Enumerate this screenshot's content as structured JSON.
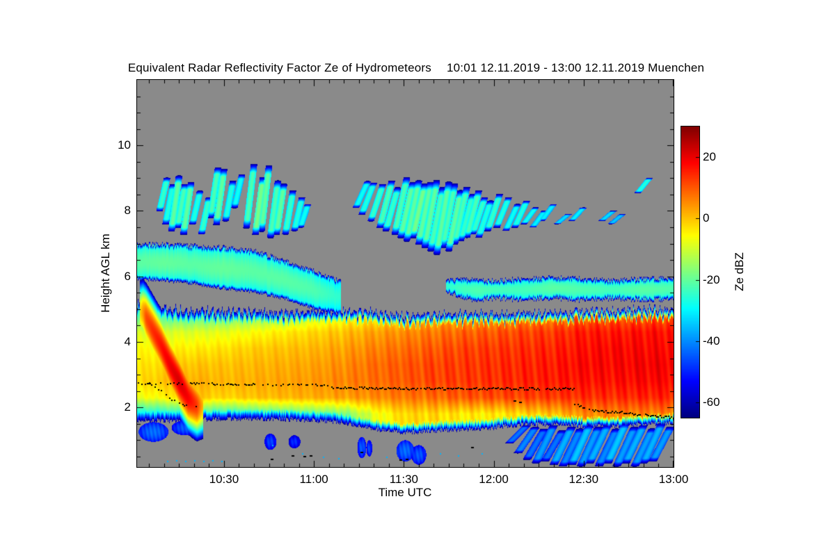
{
  "title": {
    "main": "Equivalent Radar Reflectivity Factor Ze of Hydrometeors",
    "period": "10:01 12.11.2019 - 13:00 12.11.2019 Muenchen"
  },
  "axes": {
    "x": {
      "label": "Time UTC",
      "start_minute": 1,
      "end_minute": 180,
      "major_tick_minutes": [
        30,
        60,
        90,
        120,
        150,
        180
      ],
      "tick_labels": [
        "10:30",
        "11:00",
        "11:30",
        "12:00",
        "12:30",
        "13:00"
      ],
      "minor_step_min": 5
    },
    "y": {
      "label": "Height AGL km",
      "range_km": [
        0.18,
        12.0
      ],
      "major_tick_values": [
        2,
        4,
        6,
        8,
        10
      ],
      "tick_labels": [
        "2",
        "4",
        "6",
        "8",
        "10"
      ],
      "minor_step_km": 0.5
    }
  },
  "colorbar": {
    "label": "Ze dBZ",
    "range_dbz": [
      -65,
      30
    ],
    "tick_values": [
      20,
      0,
      -20,
      -40,
      -60
    ],
    "tick_labels": [
      "20",
      "0",
      "-20",
      "-40",
      "-60"
    ],
    "colormap": "jet"
  },
  "colors": {
    "background": "#ffffff",
    "no_data_gray": "#8a8a8a",
    "frame": "#000000",
    "melting_layer_line": "#000000"
  },
  "chart_data": {
    "type": "heatmap",
    "title": "Equivalent Radar Reflectivity Factor Ze of Hydrometeors",
    "xlabel": "Time UTC",
    "ylabel": "Height AGL km",
    "value_units": "dBZ",
    "x_range_utc": [
      "10:01",
      "13:00"
    ],
    "y_range_km": [
      0.18,
      12.0
    ],
    "value_range": [
      -65,
      30
    ],
    "main_band": {
      "comment": "cols: [minutes_after_1000, bottom_km, top_km, dBZ at anchor heights]",
      "anchor_heights_km": [
        1.8,
        2.3,
        2.8,
        3.3,
        3.8,
        4.3,
        4.8
      ],
      "cols": [
        [
          0,
          1.55,
          5.2,
          -30,
          -8,
          -3,
          -4,
          -6,
          -10,
          -24
        ],
        [
          10,
          1.55,
          5.05,
          -28,
          -5,
          0,
          -2,
          -5,
          -9,
          -22
        ],
        [
          20,
          1.6,
          5.0,
          -24,
          0,
          2,
          0,
          -4,
          -9,
          -22
        ],
        [
          30,
          1.6,
          4.95,
          -26,
          -2,
          1,
          0,
          -3,
          -8,
          -20
        ],
        [
          40,
          1.6,
          4.95,
          -24,
          0,
          2,
          1,
          -1,
          -6,
          -17
        ],
        [
          50,
          1.6,
          4.9,
          -22,
          1,
          3,
          2,
          0,
          -4,
          -15
        ],
        [
          60,
          1.55,
          4.95,
          -20,
          2,
          4,
          3,
          1,
          -2,
          -11
        ],
        [
          70,
          1.5,
          4.95,
          -18,
          3,
          6,
          5,
          3,
          0,
          -7
        ],
        [
          80,
          1.3,
          4.9,
          -8,
          5,
          8,
          8,
          6,
          3,
          -5
        ],
        [
          90,
          1.2,
          4.8,
          -2,
          7,
          10,
          10,
          8,
          5,
          -2
        ],
        [
          100,
          1.25,
          4.85,
          -2,
          8,
          12,
          12,
          10,
          7,
          1
        ],
        [
          110,
          1.3,
          4.85,
          -4,
          10,
          13,
          13,
          12,
          9,
          3
        ],
        [
          120,
          1.35,
          4.85,
          -4,
          11,
          14,
          14,
          13,
          10,
          4
        ],
        [
          130,
          1.45,
          4.9,
          -2,
          12,
          15,
          15,
          14,
          12,
          5
        ],
        [
          140,
          1.45,
          4.9,
          0,
          13,
          16,
          16,
          15,
          13,
          6
        ],
        [
          150,
          1.4,
          4.95,
          5,
          14,
          17,
          18,
          17,
          16,
          9
        ],
        [
          160,
          1.4,
          4.95,
          6,
          14,
          17,
          18,
          18,
          16,
          10
        ],
        [
          170,
          1.45,
          5.0,
          6,
          15,
          18,
          19,
          18,
          17,
          10
        ],
        [
          180,
          1.5,
          5.0,
          6,
          15,
          18,
          19,
          18,
          17,
          11
        ]
      ]
    },
    "left_fall_streak": {
      "comment": "strong descending streak 10:03-10:21, core: [minute, height_km, peak_dBZ]",
      "core": [
        [
          3,
          4.9,
          10
        ],
        [
          6,
          4.4,
          14
        ],
        [
          9,
          3.9,
          17
        ],
        [
          12,
          3.3,
          20
        ],
        [
          15,
          2.8,
          22
        ],
        [
          18,
          2.3,
          19
        ],
        [
          21,
          2.05,
          13
        ]
      ]
    },
    "layers": {
      "left_midlevel": {
        "comment": "[minute, bottom_km, top_km, mid_dBZ] cloud layer 10:01-11:08",
        "cols": [
          [
            0,
            5.9,
            7.0,
            -26
          ],
          [
            10,
            5.85,
            7.0,
            -25
          ],
          [
            20,
            5.75,
            6.95,
            -26
          ],
          [
            30,
            5.6,
            6.9,
            -25
          ],
          [
            40,
            5.5,
            6.8,
            -26
          ],
          [
            50,
            5.3,
            6.5,
            -26
          ],
          [
            60,
            5.0,
            6.2,
            -27
          ],
          [
            68,
            4.85,
            5.9,
            -30
          ]
        ]
      },
      "right_midlevel": {
        "comment": "thin layer 11:45-13:00 near 5.2-6.0 km",
        "cols": [
          [
            105,
            5.5,
            5.9,
            -30
          ],
          [
            110,
            5.3,
            5.95,
            -28
          ],
          [
            115,
            5.25,
            5.9,
            -27
          ],
          [
            120,
            5.3,
            5.9,
            -28
          ],
          [
            130,
            5.25,
            5.95,
            -28
          ],
          [
            140,
            5.3,
            6.0,
            -26
          ],
          [
            150,
            5.25,
            5.95,
            -27
          ],
          [
            160,
            5.3,
            5.9,
            -28
          ],
          [
            170,
            5.25,
            5.95,
            -26
          ],
          [
            180,
            5.25,
            6.0,
            -27
          ]
        ]
      }
    },
    "cirrus_groups": [
      {
        "name": "morning-streaks",
        "tilt_min": -2.5,
        "width_min": 1.1,
        "streaks": [
          [
            11,
            9.0,
            8.0,
            -30
          ],
          [
            13,
            8.8,
            7.6,
            -32
          ],
          [
            15,
            9.05,
            7.4,
            -26
          ],
          [
            17,
            8.8,
            7.5,
            -28
          ],
          [
            19,
            8.85,
            7.3,
            -26
          ],
          [
            22,
            8.6,
            7.6,
            -32
          ],
          [
            25,
            8.4,
            7.3,
            -30
          ],
          [
            28,
            9.3,
            7.8,
            -28
          ],
          [
            30,
            9.25,
            7.6,
            -26
          ],
          [
            33,
            8.9,
            7.7,
            -32
          ],
          [
            36,
            9.1,
            8.1,
            -34
          ],
          [
            40,
            9.4,
            7.5,
            -28
          ],
          [
            43,
            9.0,
            7.3,
            -24
          ],
          [
            45,
            9.35,
            7.4,
            -26
          ],
          [
            48,
            8.9,
            7.2,
            -28
          ],
          [
            50,
            8.8,
            7.3,
            -26
          ],
          [
            53,
            8.6,
            7.3,
            -30
          ],
          [
            56,
            8.4,
            7.4,
            -32
          ],
          [
            58,
            8.2,
            7.5,
            -34
          ]
        ]
      },
      {
        "name": "midday-streaks",
        "tilt_min": -4,
        "width_min": 1.1,
        "streaks": [
          [
            78,
            8.9,
            8.1,
            -34
          ],
          [
            80,
            8.85,
            7.9,
            -32
          ],
          [
            83,
            8.8,
            7.7,
            -30
          ],
          [
            86,
            8.9,
            7.5,
            -28
          ],
          [
            88,
            8.7,
            7.4,
            -30
          ],
          [
            91,
            9.0,
            7.3,
            -28
          ],
          [
            93,
            8.85,
            7.2,
            -26
          ],
          [
            95,
            8.9,
            7.1,
            -26
          ],
          [
            97,
            8.8,
            7.2,
            -24
          ],
          [
            99,
            8.85,
            7.0,
            -26
          ],
          [
            101,
            8.9,
            6.9,
            -26
          ],
          [
            103,
            8.7,
            6.8,
            -28
          ],
          [
            105,
            8.85,
            6.7,
            -26
          ],
          [
            107,
            8.8,
            6.9,
            -28
          ],
          [
            109,
            8.6,
            6.8,
            -26
          ],
          [
            111,
            8.7,
            7.0,
            -28
          ],
          [
            113,
            8.5,
            7.1,
            -30
          ],
          [
            115,
            8.6,
            7.2,
            -28
          ],
          [
            117,
            8.4,
            7.3,
            -30
          ],
          [
            119,
            8.3,
            7.2,
            -32
          ],
          [
            122,
            8.5,
            7.4,
            -30
          ],
          [
            125,
            8.4,
            7.5,
            -32
          ],
          [
            128,
            8.2,
            7.4,
            -34
          ],
          [
            131,
            8.3,
            7.5,
            -32
          ],
          [
            134,
            8.1,
            7.6,
            -34
          ],
          [
            137,
            8.0,
            7.5,
            -36
          ],
          [
            140,
            8.2,
            7.7,
            -36
          ],
          [
            145,
            7.9,
            7.6,
            -38
          ],
          [
            150,
            8.1,
            7.7,
            -36
          ],
          [
            160,
            8.0,
            7.7,
            -38
          ],
          [
            163,
            7.9,
            7.6,
            -40
          ],
          [
            172,
            9.0,
            8.55,
            -32
          ]
        ]
      }
    ],
    "virga": {
      "comment": "blue fall streaks below the band 12:10-13:00, [minute, top_km, bottom_km, dBZ]",
      "tilt_min": -6,
      "width_min": 1.4,
      "streaks": [
        [
          131,
          1.45,
          0.9,
          -48
        ],
        [
          134,
          1.4,
          0.6,
          -46
        ],
        [
          137,
          1.35,
          0.4,
          -48
        ],
        [
          140,
          1.45,
          0.3,
          -44
        ],
        [
          143,
          1.3,
          0.35,
          -48
        ],
        [
          146,
          1.4,
          0.25,
          -42
        ],
        [
          149,
          1.35,
          0.2,
          -46
        ],
        [
          152,
          1.45,
          0.25,
          -40
        ],
        [
          155,
          1.4,
          0.2,
          -44
        ],
        [
          158,
          1.45,
          0.3,
          -42
        ],
        [
          161,
          1.35,
          0.2,
          -46
        ],
        [
          164,
          1.5,
          0.3,
          -40
        ],
        [
          167,
          1.4,
          0.2,
          -44
        ],
        [
          170,
          1.45,
          0.3,
          -42
        ],
        [
          173,
          1.35,
          0.2,
          -44
        ],
        [
          176,
          1.5,
          0.3,
          -42
        ],
        [
          179,
          1.4,
          0.35,
          -44
        ]
      ]
    },
    "low_blobs": [
      [
        2,
        11,
        1.0,
        1.5,
        -48
      ],
      [
        13,
        21,
        1.2,
        1.55,
        -50
      ],
      [
        44,
        47,
        0.75,
        1.15,
        -52
      ],
      [
        52,
        55,
        0.8,
        1.1,
        -54
      ],
      [
        75,
        77,
        0.5,
        1.05,
        -50
      ],
      [
        78,
        79,
        0.55,
        0.95,
        -52
      ],
      [
        88,
        93,
        0.4,
        0.95,
        -48
      ],
      [
        93,
        97,
        0.3,
        0.8,
        -50
      ]
    ],
    "cyan_specks": [
      [
        11,
        0.38
      ],
      [
        14,
        0.4
      ],
      [
        17,
        0.37
      ],
      [
        20,
        0.4
      ],
      [
        23,
        0.38
      ],
      [
        26,
        0.4
      ],
      [
        29,
        0.37
      ],
      [
        46,
        0.85
      ],
      [
        56,
        0.6
      ],
      [
        63,
        0.5
      ],
      [
        68,
        0.45
      ],
      [
        84,
        0.5
      ],
      [
        102,
        0.6
      ],
      [
        108,
        0.55
      ],
      [
        116,
        0.6
      ]
    ],
    "black_line": {
      "comment": "black dotted melting-layer / cloud-base line, points [minute, height_km]",
      "segments": [
        {
          "style": "dotted",
          "points": [
            [
              1,
              2.74
            ],
            [
              7,
              2.7
            ]
          ]
        },
        {
          "style": "dotted",
          "points": [
            [
              7,
              2.62
            ],
            [
              9,
              2.5
            ],
            [
              11,
              2.36
            ],
            [
              13,
              2.22
            ],
            [
              15,
              2.12
            ],
            [
              17,
              2.06
            ],
            [
              19,
              2.04
            ],
            [
              21,
              2.05
            ]
          ]
        },
        {
          "style": "dotted",
          "points": [
            [
              4,
              2.73
            ],
            [
              20,
              2.72
            ],
            [
              40,
              2.7
            ],
            [
              60,
              2.68
            ],
            [
              66,
              2.64
            ]
          ]
        },
        {
          "style": "solid",
          "points": [
            [
              66,
              2.6
            ],
            [
              80,
              2.58
            ],
            [
              100,
              2.57
            ],
            [
              120,
              2.57
            ],
            [
              147,
              2.56
            ]
          ]
        },
        {
          "style": "dotted",
          "points": [
            [
              147,
              2.1
            ],
            [
              150,
              2.0
            ],
            [
              153,
              1.95
            ]
          ]
        },
        {
          "style": "solid",
          "points": [
            [
              153,
              1.9
            ],
            [
              158,
              1.87
            ],
            [
              163,
              1.84
            ],
            [
              167,
              1.8
            ],
            [
              171,
              1.76
            ],
            [
              175,
              1.73
            ],
            [
              180,
              1.68
            ]
          ]
        }
      ],
      "specks": [
        [
          46,
          0.42
        ],
        [
          53,
          0.52
        ],
        [
          57,
          0.5
        ],
        [
          59,
          0.53
        ],
        [
          76,
          0.62
        ],
        [
          89,
          0.4
        ],
        [
          91,
          0.42
        ],
        [
          113,
          0.78
        ],
        [
          127,
          2.2
        ],
        [
          129,
          2.15
        ]
      ]
    }
  }
}
